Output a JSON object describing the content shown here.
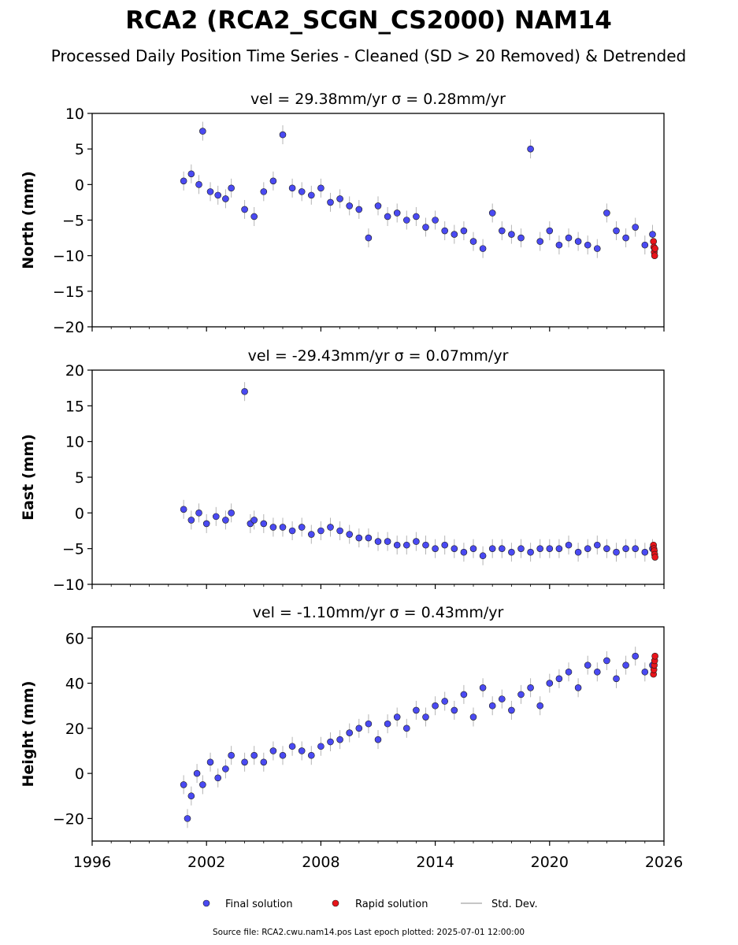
{
  "header": {
    "title": "RCA2 (RCA2_SCGN_CS2000) NAM14",
    "subtitle": "Processed Daily Position Time Series - Cleaned (SD > 20 Removed) & Detrended"
  },
  "legend": {
    "final_label": "Final solution",
    "rapid_label": "Rapid solution",
    "stddev_label": "Std. Dev."
  },
  "footer": {
    "source": "Source file: RCA2.cwu.nam14.pos  Last epoch plotted: 2025-07-01 12:00:00"
  },
  "colors": {
    "final": "#4a4af2",
    "rapid": "#e8141a",
    "stddev": "#b4b4b4",
    "marker_edge": "#1a1a1a"
  },
  "chart_data": [
    {
      "type": "scatter",
      "title": "vel = 29.38mm/yr   σ = 0.28mm/yr",
      "ylabel": "North (mm)",
      "xlim": [
        1996,
        2026
      ],
      "ylim": [
        -20,
        10
      ],
      "yticks": [
        -20,
        -15,
        -10,
        -5,
        0,
        5,
        10
      ],
      "ytick_labels": [
        "−20",
        "−15",
        "−10",
        "−5",
        "0",
        "5",
        "10"
      ],
      "final_series": {
        "name": "Final solution",
        "x": [
          2000.8,
          2001.2,
          2001.6,
          2001.8,
          2002.2,
          2002.6,
          2003.0,
          2003.3,
          2004.0,
          2004.5,
          2005.0,
          2005.5,
          2006.0,
          2006.5,
          2007.0,
          2007.5,
          2008.0,
          2008.5,
          2009.0,
          2009.5,
          2010.0,
          2010.5,
          2011.0,
          2011.5,
          2012.0,
          2012.5,
          2013.0,
          2013.5,
          2014.0,
          2014.5,
          2015.0,
          2015.5,
          2016.0,
          2016.5,
          2017.0,
          2017.5,
          2018.0,
          2018.5,
          2019.0,
          2019.5,
          2020.0,
          2020.5,
          2021.0,
          2021.5,
          2022.0,
          2022.5,
          2023.0,
          2023.5,
          2024.0,
          2024.5,
          2025.0,
          2025.4
        ],
        "y": [
          0.5,
          1.5,
          0.0,
          7.5,
          -1.0,
          -1.5,
          -2.0,
          -0.5,
          -3.5,
          -4.5,
          -1.0,
          0.5,
          7.0,
          -0.5,
          -1.0,
          -1.5,
          -0.5,
          -2.5,
          -2.0,
          -3.0,
          -3.5,
          -7.5,
          -3.0,
          -4.5,
          -4.0,
          -5.0,
          -4.5,
          -6.0,
          -5.0,
          -6.5,
          -7.0,
          -6.5,
          -8.0,
          -9.0,
          -4.0,
          -6.5,
          -7.0,
          -7.5,
          5.0,
          -8.0,
          -6.5,
          -8.5,
          -7.5,
          -8.0,
          -8.5,
          -9.0,
          -4.0,
          -6.5,
          -7.5,
          -6.0,
          -8.5,
          -7.0
        ]
      },
      "rapid_series": {
        "name": "Rapid solution",
        "x": [
          2025.45,
          2025.47,
          2025.49,
          2025.51,
          2025.53
        ],
        "y": [
          -8.0,
          -8.8,
          -9.5,
          -10.0,
          -9.0
        ]
      }
    },
    {
      "type": "scatter",
      "title": "vel = -29.43mm/yr   σ = 0.07mm/yr",
      "ylabel": "East (mm)",
      "xlim": [
        1996,
        2026
      ],
      "ylim": [
        -10,
        20
      ],
      "yticks": [
        -10,
        -5,
        0,
        5,
        10,
        15,
        20
      ],
      "ytick_labels": [
        "−10",
        "−5",
        "0",
        "5",
        "10",
        "15",
        "20"
      ],
      "final_series": {
        "name": "Final solution",
        "x": [
          2000.8,
          2001.2,
          2001.6,
          2002.0,
          2002.5,
          2003.0,
          2003.3,
          2004.0,
          2004.3,
          2004.5,
          2005.0,
          2005.5,
          2006.0,
          2006.5,
          2007.0,
          2007.5,
          2008.0,
          2008.5,
          2009.0,
          2009.5,
          2010.0,
          2010.5,
          2011.0,
          2011.5,
          2012.0,
          2012.5,
          2013.0,
          2013.5,
          2014.0,
          2014.5,
          2015.0,
          2015.5,
          2016.0,
          2016.5,
          2017.0,
          2017.5,
          2018.0,
          2018.5,
          2019.0,
          2019.5,
          2020.0,
          2020.5,
          2021.0,
          2021.5,
          2022.0,
          2022.5,
          2023.0,
          2023.5,
          2024.0,
          2024.5,
          2025.0,
          2025.4
        ],
        "y": [
          0.5,
          -1.0,
          0.0,
          -1.5,
          -0.5,
          -1.0,
          0.0,
          17.0,
          -1.5,
          -1.0,
          -1.5,
          -2.0,
          -2.0,
          -2.5,
          -2.0,
          -3.0,
          -2.5,
          -2.0,
          -2.5,
          -3.0,
          -3.5,
          -3.5,
          -4.0,
          -4.0,
          -4.5,
          -4.5,
          -4.0,
          -4.5,
          -5.0,
          -4.5,
          -5.0,
          -5.5,
          -5.0,
          -6.0,
          -5.0,
          -5.0,
          -5.5,
          -5.0,
          -5.5,
          -5.0,
          -5.0,
          -5.0,
          -4.5,
          -5.5,
          -5.0,
          -4.5,
          -5.0,
          -5.5,
          -5.0,
          -5.0,
          -5.5,
          -5.0
        ]
      },
      "rapid_series": {
        "name": "Rapid solution",
        "x": [
          2025.45,
          2025.47,
          2025.49,
          2025.51,
          2025.53
        ],
        "y": [
          -4.5,
          -5.0,
          -5.3,
          -5.8,
          -6.2
        ]
      }
    },
    {
      "type": "scatter",
      "title": "vel = -1.10mm/yr   σ = 0.43mm/yr",
      "ylabel": "Height (mm)",
      "xlim": [
        1996,
        2026
      ],
      "ylim": [
        -30,
        65
      ],
      "yticks": [
        -20,
        0,
        20,
        40,
        60
      ],
      "ytick_labels": [
        "−20",
        "0",
        "20",
        "40",
        "60"
      ],
      "xticks": [
        1996,
        2002,
        2008,
        2014,
        2020,
        2026
      ],
      "xtick_labels": [
        "1996",
        "2002",
        "2008",
        "2014",
        "2020",
        "2026"
      ],
      "final_series": {
        "name": "Final solution",
        "x": [
          2000.8,
          2001.0,
          2001.2,
          2001.5,
          2001.8,
          2002.2,
          2002.6,
          2003.0,
          2003.3,
          2004.0,
          2004.5,
          2005.0,
          2005.5,
          2006.0,
          2006.5,
          2007.0,
          2007.5,
          2008.0,
          2008.5,
          2009.0,
          2009.5,
          2010.0,
          2010.5,
          2011.0,
          2011.5,
          2012.0,
          2012.5,
          2013.0,
          2013.5,
          2014.0,
          2014.5,
          2015.0,
          2015.5,
          2016.0,
          2016.5,
          2017.0,
          2017.5,
          2018.0,
          2018.5,
          2019.0,
          2019.5,
          2020.0,
          2020.5,
          2021.0,
          2021.5,
          2022.0,
          2022.5,
          2023.0,
          2023.5,
          2024.0,
          2024.5,
          2025.0,
          2025.4
        ],
        "y": [
          -5.0,
          -20.0,
          -10.0,
          0.0,
          -5.0,
          5.0,
          -2.0,
          2.0,
          8.0,
          5.0,
          8.0,
          5.0,
          10.0,
          8.0,
          12.0,
          10.0,
          8.0,
          12.0,
          14.0,
          15.0,
          18.0,
          20.0,
          22.0,
          15.0,
          22.0,
          25.0,
          20.0,
          28.0,
          25.0,
          30.0,
          32.0,
          28.0,
          35.0,
          25.0,
          38.0,
          30.0,
          33.0,
          28.0,
          35.0,
          38.0,
          30.0,
          40.0,
          42.0,
          45.0,
          38.0,
          48.0,
          45.0,
          50.0,
          42.0,
          48.0,
          52.0,
          45.0,
          48.0
        ]
      },
      "rapid_series": {
        "name": "Rapid solution",
        "x": [
          2025.45,
          2025.47,
          2025.49,
          2025.51,
          2025.53
        ],
        "y": [
          44.0,
          46.0,
          48.0,
          50.0,
          52.0
        ]
      }
    }
  ]
}
